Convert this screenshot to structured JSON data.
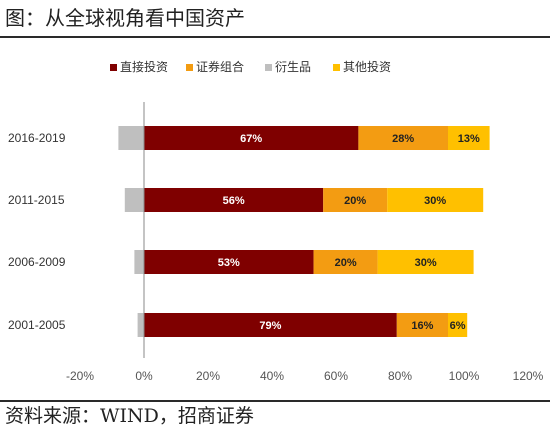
{
  "page": {
    "title": "图：从全球视角看中国资产",
    "source": "资料来源：WIND，招商证券"
  },
  "chart_data": {
    "type": "bar",
    "orientation": "horizontal",
    "stacked": true,
    "categories": [
      "2016-2019",
      "2011-2015",
      "2006-2009",
      "2001-2005"
    ],
    "series": [
      {
        "name": "直接投资",
        "color": "#7f0000",
        "values": [
          67,
          56,
          53,
          79
        ],
        "labels": [
          "67%",
          "56%",
          "53%",
          "79%"
        ],
        "label_color": "#ffffff"
      },
      {
        "name": "证券组合",
        "color": "#f39c12",
        "values": [
          28,
          20,
          20,
          16
        ],
        "labels": [
          "28%",
          "20%",
          "20%",
          "16%"
        ],
        "label_color": "#222222"
      },
      {
        "name": "衍生品",
        "color": "#bfbfbf",
        "values": [
          -8,
          -6,
          -3,
          -2
        ],
        "labels": [
          null,
          null,
          null,
          null
        ],
        "label_color": "#222222"
      },
      {
        "name": "其他投资",
        "color": "#ffc000",
        "values": [
          13,
          30,
          30,
          6
        ],
        "labels": [
          "13%",
          "30%",
          "30%",
          "6%"
        ],
        "label_color": "#222222"
      }
    ],
    "xlim": [
      -20,
      120
    ],
    "x_ticks": [
      -20,
      0,
      20,
      40,
      60,
      80,
      100,
      120
    ],
    "x_tick_labels": [
      "-20%",
      "0%",
      "20%",
      "40%",
      "60%",
      "80%",
      "100%",
      "120%"
    ],
    "legend_position": "top",
    "grid": false
  }
}
